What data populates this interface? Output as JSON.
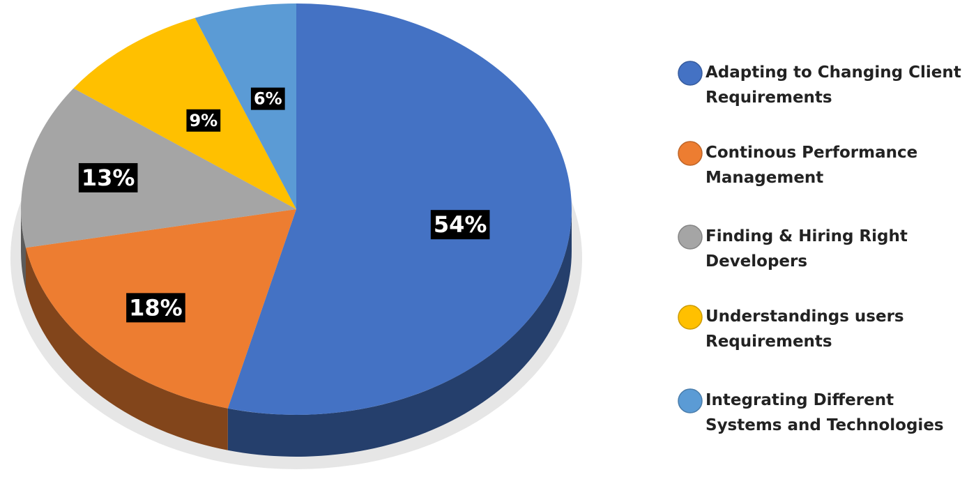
{
  "chart_data": {
    "type": "pie",
    "categories": [
      "Adapting to Changing Client Requirements",
      "Continous Performance Management",
      "Finding & Hiring Right Developers",
      "Understandings users Requirements",
      "Integrating Different Systems and Technologies"
    ],
    "values": [
      54,
      18,
      13,
      9,
      6
    ],
    "value_labels": [
      "54%",
      "18%",
      "13%",
      "9%",
      "6%"
    ],
    "colors": [
      "#4472c4",
      "#ed7d31",
      "#a5a5a5",
      "#ffc000",
      "#5b9bd5"
    ]
  }
}
